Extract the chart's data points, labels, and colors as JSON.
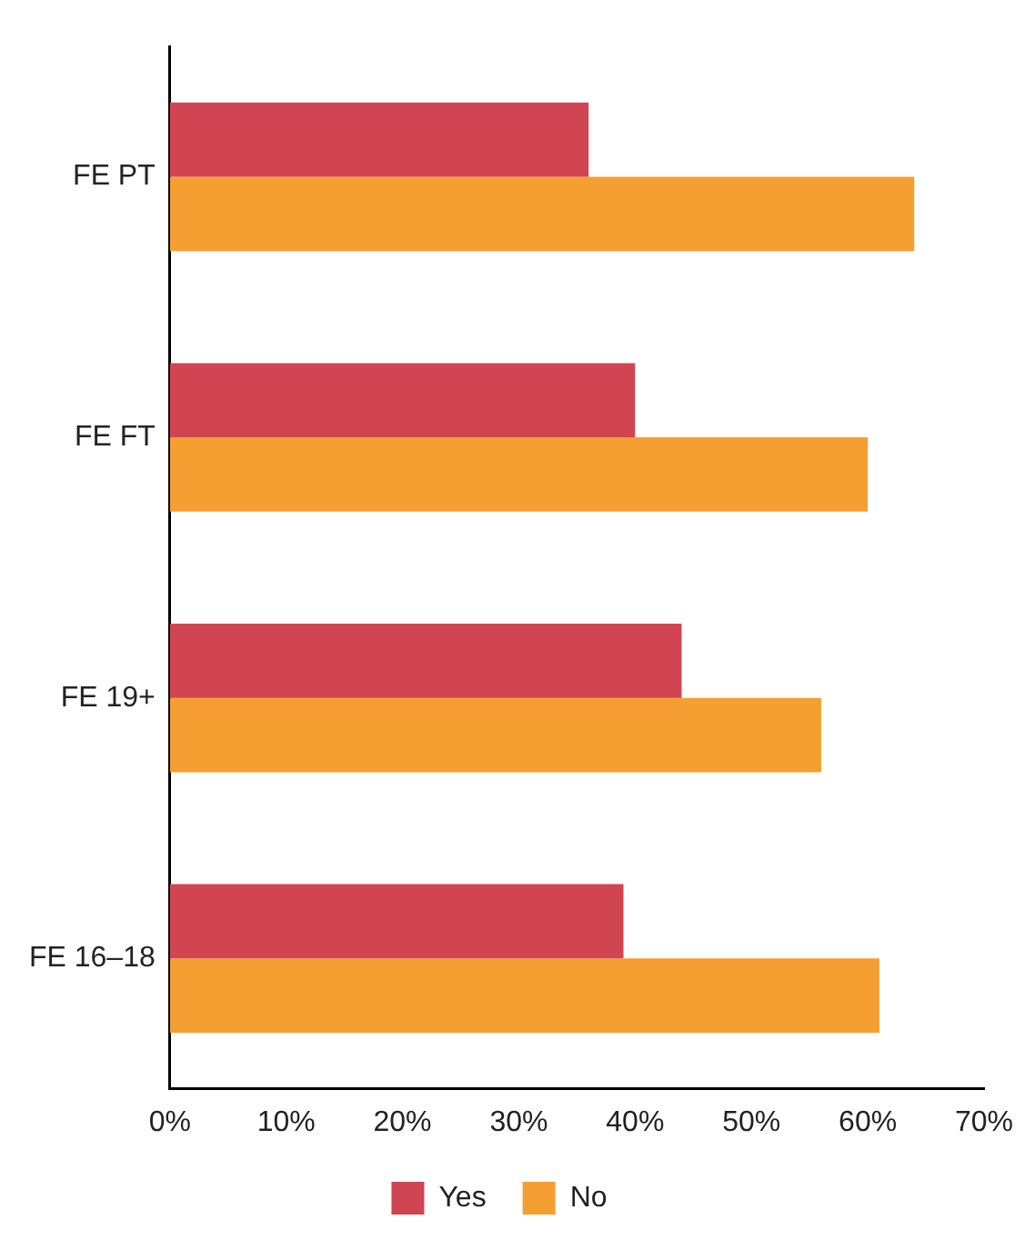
{
  "chart_data": {
    "type": "bar",
    "orientation": "horizontal",
    "categories": [
      "FE PT",
      "FE FT",
      "FE 19+",
      "FE 16–18"
    ],
    "series": [
      {
        "name": "Yes",
        "color": "#d14553",
        "values": [
          36,
          40,
          44,
          39
        ]
      },
      {
        "name": "No",
        "color": "#f59e32",
        "values": [
          64,
          60,
          56,
          61
        ]
      }
    ],
    "xlim": [
      0,
      70
    ],
    "xticks": [
      {
        "value": 0,
        "label": "0%"
      },
      {
        "value": 10,
        "label": "10%"
      },
      {
        "value": 20,
        "label": "20%"
      },
      {
        "value": 30,
        "label": "30%"
      },
      {
        "value": 40,
        "label": "40%"
      },
      {
        "value": 50,
        "label": "50%"
      },
      {
        "value": 60,
        "label": "60%"
      },
      {
        "value": 70,
        "label": "70%"
      }
    ],
    "grid": false,
    "legend": "bottom"
  }
}
